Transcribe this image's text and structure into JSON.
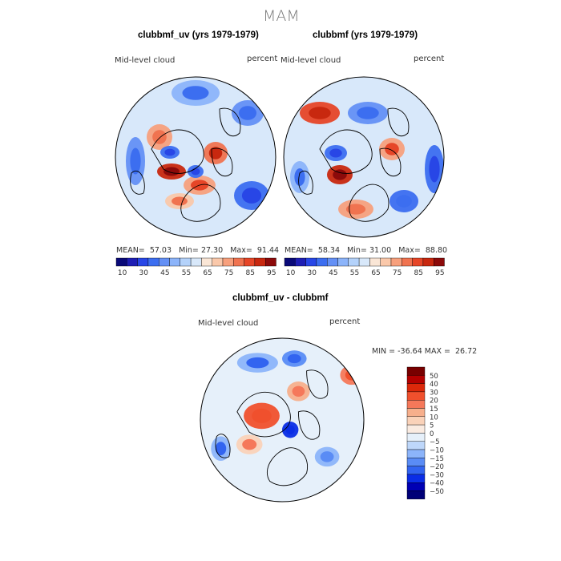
{
  "figure": {
    "season": "MAM",
    "panels": [
      {
        "title": "clubbmf_uv (yrs 1979-1979)",
        "left_label": "Mid-level cloud",
        "right_label": "percent",
        "stats": {
          "mean_label": "MEAN=",
          "mean": "57.03",
          "min_label": "Min=",
          "min": "27.30",
          "max_label": "Max=",
          "max": "91.44"
        },
        "colorbar_ticks": [
          "10",
          "30",
          "45",
          "55",
          "65",
          "75",
          "85",
          "95"
        ]
      },
      {
        "title": "clubbmf (yrs 1979-1979)",
        "left_label": "Mid-level cloud",
        "right_label": "percent",
        "stats": {
          "mean_label": "MEAN=",
          "mean": "58.34",
          "min_label": "Min=",
          "min": "31.00",
          "max_label": "Max=",
          "max": "88.80"
        },
        "colorbar_ticks": [
          "10",
          "30",
          "45",
          "55",
          "65",
          "75",
          "85",
          "95"
        ]
      },
      {
        "title": "clubbmf_uv - clubbmf",
        "left_label": "Mid-level cloud",
        "right_label": "percent",
        "stats": {
          "min_label": "MIN =",
          "min": "-36.64",
          "max_label": "MAX =",
          "max": "26.72"
        },
        "colorbar_ticks": [
          "50",
          "40",
          "30",
          "20",
          "15",
          "10",
          "5",
          "0",
          "−5",
          "−10",
          "−15",
          "−20",
          "−30",
          "−40",
          "−50"
        ]
      }
    ]
  },
  "chart_data": [
    {
      "type": "heatmap",
      "title": "clubbmf_uv (yrs 1979-1979)",
      "projection": "north polar stereographic",
      "variable": "Mid-level cloud",
      "units": "percent",
      "mean": 57.03,
      "min": 27.3,
      "max": 91.44,
      "colorbar": {
        "levels": [
          10,
          20,
          30,
          40,
          45,
          50,
          55,
          60,
          65,
          70,
          75,
          80,
          85,
          90,
          95
        ],
        "colors": [
          "#0a0a78",
          "#1e1eb4",
          "#2846e6",
          "#3c6ef0",
          "#6490f5",
          "#8cb4fa",
          "#b4d2fa",
          "#d8e8fa",
          "#fae6d6",
          "#fac8aa",
          "#f7a07d",
          "#f07350",
          "#e64628",
          "#c8280f",
          "#8c0a0a"
        ]
      },
      "blobs": [
        {
          "dx": -0.3,
          "dy": 0.18,
          "rx": 0.18,
          "ry": 0.1,
          "v": 88
        },
        {
          "dx": 0.25,
          "dy": -0.05,
          "rx": 0.15,
          "ry": 0.14,
          "v": 78
        },
        {
          "dx": 0.05,
          "dy": 0.35,
          "rx": 0.2,
          "ry": 0.12,
          "v": 74
        },
        {
          "dx": -0.45,
          "dy": -0.25,
          "rx": 0.16,
          "ry": 0.16,
          "v": 72
        },
        {
          "dx": -0.2,
          "dy": 0.55,
          "rx": 0.18,
          "ry": 0.1,
          "v": 70
        },
        {
          "dx": -0.32,
          "dy": -0.06,
          "rx": 0.12,
          "ry": 0.08,
          "v": 34
        },
        {
          "dx": 0.7,
          "dy": 0.48,
          "rx": 0.22,
          "ry": 0.18,
          "v": 32
        },
        {
          "dx": 0.0,
          "dy": 0.18,
          "rx": 0.1,
          "ry": 0.08,
          "v": 36
        },
        {
          "dx": 0.65,
          "dy": -0.55,
          "rx": 0.2,
          "ry": 0.16,
          "v": 42
        },
        {
          "dx": 0.0,
          "dy": -0.8,
          "rx": 0.3,
          "ry": 0.16,
          "v": 46
        },
        {
          "dx": -0.75,
          "dy": 0.05,
          "rx": 0.12,
          "ry": 0.3,
          "v": 44
        }
      ]
    },
    {
      "type": "heatmap",
      "title": "clubbmf (yrs 1979-1979)",
      "projection": "north polar stereographic",
      "variable": "Mid-level cloud",
      "units": "percent",
      "mean": 58.34,
      "min": 31.0,
      "max": 88.8,
      "colorbar": {
        "levels": [
          10,
          20,
          30,
          40,
          45,
          50,
          55,
          60,
          65,
          70,
          75,
          80,
          85,
          90,
          95
        ],
        "colors": [
          "#0a0a78",
          "#1e1eb4",
          "#2846e6",
          "#3c6ef0",
          "#6490f5",
          "#8cb4fa",
          "#b4d2fa",
          "#d8e8fa",
          "#fae6d6",
          "#fac8aa",
          "#f7a07d",
          "#f07350",
          "#e64628",
          "#c8280f",
          "#8c0a0a"
        ]
      },
      "blobs": [
        {
          "dx": -0.3,
          "dy": 0.22,
          "rx": 0.16,
          "ry": 0.12,
          "v": 86
        },
        {
          "dx": -0.55,
          "dy": -0.55,
          "rx": 0.25,
          "ry": 0.14,
          "v": 82
        },
        {
          "dx": 0.35,
          "dy": -0.1,
          "rx": 0.16,
          "ry": 0.14,
          "v": 74
        },
        {
          "dx": -0.1,
          "dy": 0.65,
          "rx": 0.22,
          "ry": 0.12,
          "v": 72
        },
        {
          "dx": -0.35,
          "dy": -0.05,
          "rx": 0.14,
          "ry": 0.1,
          "v": 34
        },
        {
          "dx": 0.88,
          "dy": 0.15,
          "rx": 0.12,
          "ry": 0.3,
          "v": 33
        },
        {
          "dx": 0.5,
          "dy": 0.55,
          "rx": 0.18,
          "ry": 0.14,
          "v": 40
        },
        {
          "dx": 0.05,
          "dy": -0.55,
          "rx": 0.25,
          "ry": 0.14,
          "v": 44
        },
        {
          "dx": -0.8,
          "dy": 0.25,
          "rx": 0.12,
          "ry": 0.2,
          "v": 46
        }
      ]
    },
    {
      "type": "heatmap",
      "title": "clubbmf_uv - clubbmf",
      "projection": "north polar stereographic",
      "variable": "Mid-level cloud",
      "units": "percent",
      "min": -36.64,
      "max": 26.72,
      "colorbar": {
        "levels": [
          -50,
          -40,
          -30,
          -20,
          -15,
          -10,
          -5,
          0,
          5,
          10,
          15,
          20,
          30,
          40,
          50
        ],
        "colors": [
          "#000078",
          "#0000b4",
          "#0a2de6",
          "#3264f0",
          "#5a8cf5",
          "#8cb4fa",
          "#bed7fa",
          "#e6f0fa",
          "#faebe1",
          "#fad2b9",
          "#f7af8c",
          "#f5785a",
          "#f0502d",
          "#dc280a",
          "#b40000",
          "#780000"
        ]
      },
      "blobs": [
        {
          "dx": -0.25,
          "dy": -0.05,
          "rx": 0.22,
          "ry": 0.16,
          "v": 22
        },
        {
          "dx": 0.2,
          "dy": -0.35,
          "rx": 0.14,
          "ry": 0.12,
          "v": 12
        },
        {
          "dx": -0.4,
          "dy": 0.3,
          "rx": 0.16,
          "ry": 0.12,
          "v": 8
        },
        {
          "dx": 0.85,
          "dy": -0.55,
          "rx": 0.14,
          "ry": 0.12,
          "v": 16
        },
        {
          "dx": -0.3,
          "dy": -0.7,
          "rx": 0.25,
          "ry": 0.12,
          "v": -14
        },
        {
          "dx": 0.1,
          "dy": 0.12,
          "rx": 0.1,
          "ry": 0.1,
          "v": -30
        },
        {
          "dx": 0.15,
          "dy": -0.75,
          "rx": 0.15,
          "ry": 0.1,
          "v": -18
        },
        {
          "dx": -0.75,
          "dy": 0.35,
          "rx": 0.12,
          "ry": 0.15,
          "v": -12
        },
        {
          "dx": 0.55,
          "dy": 0.45,
          "rx": 0.15,
          "ry": 0.12,
          "v": -10
        }
      ]
    }
  ]
}
